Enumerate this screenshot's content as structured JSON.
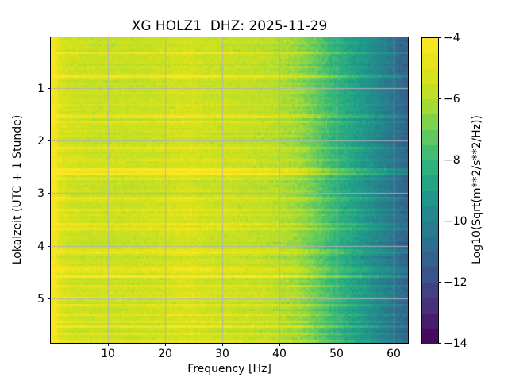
{
  "chart_data": {
    "type": "heatmap",
    "subtype": "spectrogram",
    "title": "XG HOLZ1  DHZ: 2025-11-29",
    "xlabel": "Frequency [Hz]",
    "ylabel": "Lokalzeit (UTC + 1 Stunde)",
    "colorbar_label": "Log10(Sqrt(m**2/s**2/Hz))",
    "colormap": "viridis",
    "colorbar_segments": 20,
    "value_range": [
      -14,
      -4
    ],
    "xlim_hz": [
      0,
      62.5
    ],
    "ylim_hours": [
      0.04,
      5.84
    ],
    "x_ticks": [
      10,
      20,
      30,
      40,
      50,
      60
    ],
    "x_tick_labels": [
      "10",
      "20",
      "30",
      "40",
      "50",
      "60"
    ],
    "y_ticks": [
      1,
      2,
      3,
      4,
      5
    ],
    "y_tick_labels": [
      "1",
      "2",
      "3",
      "4",
      "5"
    ],
    "colorbar_ticks": [
      -4,
      -6,
      -8,
      -10,
      -12,
      -14
    ],
    "colorbar_tick_labels": [
      "−4",
      "−6",
      "−8",
      "−10",
      "−12",
      "−14"
    ],
    "grid": {
      "show": true,
      "color": "rgba(176,176,184,0.9)"
    },
    "spectral_profile": {
      "freqs_hz": [
        0,
        0.7,
        1.5,
        3,
        6,
        12,
        18,
        22,
        24.5,
        27,
        32,
        38,
        43,
        46,
        49,
        52,
        55,
        58,
        61,
        62.5
      ],
      "levels_log10": [
        -4.35,
        -4.6,
        -5.0,
        -5.35,
        -5.5,
        -5.55,
        -5.5,
        -5.25,
        -5.2,
        -5.45,
        -5.55,
        -5.8,
        -6.3,
        -7.0,
        -7.9,
        -8.6,
        -9.3,
        -10.0,
        -10.8,
        -11.2
      ]
    },
    "texture": {
      "seed": 42,
      "cell_noise_std": 0.18,
      "row_streak_std": 0.13,
      "dark_speckle_prob": 0.07,
      "dark_speckle_depth": 0.28,
      "bright_streak_hours": [
        0.3,
        0.75,
        1.52,
        1.63,
        2.1,
        2.55,
        2.63,
        3.05,
        3.3,
        3.55,
        4.1,
        4.42,
        4.55,
        4.75,
        4.95,
        5.1,
        5.3,
        5.5,
        5.65,
        5.78
      ],
      "bright_streak_boost": 0.85,
      "low_freq_column_level": -4.4
    },
    "viridis_stops": [
      "#440154",
      "#482878",
      "#3e4a89",
      "#31688e",
      "#26828e",
      "#1f9e89",
      "#35b779",
      "#6ece58",
      "#b5de2b",
      "#dfe318",
      "#fde725"
    ]
  }
}
